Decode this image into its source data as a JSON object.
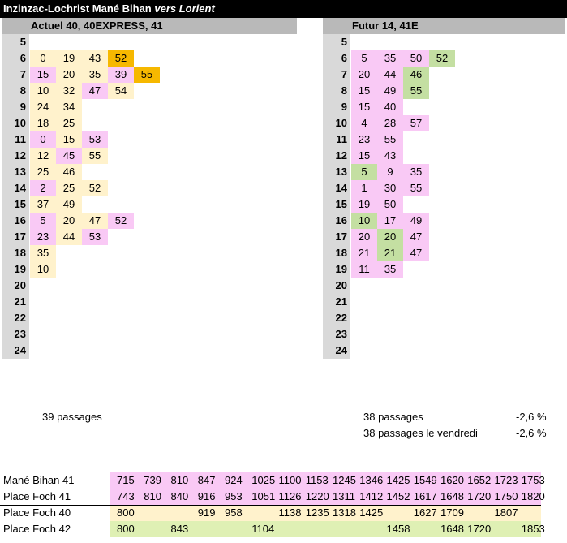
{
  "title": {
    "stop": "Inzinzac-Lochrist Mané Bihan",
    "direction": "vers Lorient"
  },
  "colors": {
    "beige": "#fff2cc",
    "pink": "#f9c9f5",
    "orange": "#f6b800",
    "green": "#c4dfa2",
    "lime": "#dff0b4",
    "header_gray": "#b9b9b9",
    "hour_gray": "#d9d9d9"
  },
  "hours": [
    "5",
    "6",
    "7",
    "8",
    "9",
    "10",
    "11",
    "12",
    "13",
    "14",
    "15",
    "16",
    "17",
    "18",
    "19",
    "20",
    "21",
    "22",
    "23",
    "24"
  ],
  "left_panel": {
    "header": "Actuel 40, 40EXPRESS, 41",
    "rows": {
      "6": [
        [
          "0",
          "beige"
        ],
        [
          "19",
          "beige"
        ],
        [
          "43",
          "beige"
        ],
        [
          "52",
          "orange"
        ]
      ],
      "7": [
        [
          "15",
          "pink"
        ],
        [
          "20",
          "beige"
        ],
        [
          "35",
          "beige"
        ],
        [
          "39",
          "pink"
        ],
        [
          "55",
          "orange"
        ]
      ],
      "8": [
        [
          "10",
          "beige"
        ],
        [
          "32",
          "beige"
        ],
        [
          "47",
          "pink"
        ],
        [
          "54",
          "beige"
        ]
      ],
      "9": [
        [
          "24",
          "beige"
        ],
        [
          "34",
          "beige"
        ]
      ],
      "10": [
        [
          "18",
          "beige"
        ],
        [
          "25",
          "beige"
        ]
      ],
      "11": [
        [
          "0",
          "pink"
        ],
        [
          "15",
          "beige"
        ],
        [
          "53",
          "pink"
        ]
      ],
      "12": [
        [
          "12",
          "beige"
        ],
        [
          "45",
          "pink"
        ],
        [
          "55",
          "beige"
        ]
      ],
      "13": [
        [
          "25",
          "beige"
        ],
        [
          "46",
          "beige"
        ]
      ],
      "14": [
        [
          "2",
          "pink"
        ],
        [
          "25",
          "beige"
        ],
        [
          "52",
          "beige"
        ]
      ],
      "15": [
        [
          "37",
          "beige"
        ],
        [
          "49",
          "beige"
        ]
      ],
      "16": [
        [
          "5",
          "pink"
        ],
        [
          "20",
          "beige"
        ],
        [
          "47",
          "beige"
        ],
        [
          "52",
          "pink"
        ]
      ],
      "17": [
        [
          "23",
          "pink"
        ],
        [
          "44",
          "beige"
        ],
        [
          "53",
          "pink"
        ]
      ],
      "18": [
        [
          "35",
          "beige"
        ]
      ],
      "19": [
        [
          "10",
          "beige"
        ]
      ]
    }
  },
  "right_panel": {
    "header": "Futur 14, 41E",
    "rows": {
      "6": [
        [
          "5",
          "pink"
        ],
        [
          "35",
          "pink"
        ],
        [
          "50",
          "pink"
        ],
        [
          "52",
          "green"
        ]
      ],
      "7": [
        [
          "20",
          "pink"
        ],
        [
          "44",
          "pink"
        ],
        [
          "46",
          "green"
        ]
      ],
      "8": [
        [
          "15",
          "pink"
        ],
        [
          "49",
          "pink"
        ],
        [
          "55",
          "green"
        ]
      ],
      "9": [
        [
          "15",
          "pink"
        ],
        [
          "40",
          "pink"
        ]
      ],
      "10": [
        [
          "4",
          "pink"
        ],
        [
          "28",
          "pink"
        ],
        [
          "57",
          "pink"
        ]
      ],
      "11": [
        [
          "23",
          "pink"
        ],
        [
          "55",
          "pink"
        ]
      ],
      "12": [
        [
          "15",
          "pink"
        ],
        [
          "43",
          "pink"
        ]
      ],
      "13": [
        [
          "5",
          "green"
        ],
        [
          "9",
          "pink"
        ],
        [
          "35",
          "pink"
        ]
      ],
      "14": [
        [
          "1",
          "pink"
        ],
        [
          "30",
          "pink"
        ],
        [
          "55",
          "pink"
        ]
      ],
      "15": [
        [
          "19",
          "pink"
        ],
        [
          "50",
          "pink"
        ]
      ],
      "16": [
        [
          "10",
          "green"
        ],
        [
          "17",
          "pink"
        ],
        [
          "49",
          "pink"
        ]
      ],
      "17": [
        [
          "20",
          "pink"
        ],
        [
          "20",
          "green"
        ],
        [
          "47",
          "pink"
        ]
      ],
      "18": [
        [
          "21",
          "pink"
        ],
        [
          "21",
          "green"
        ],
        [
          "47",
          "pink"
        ]
      ],
      "19": [
        [
          "11",
          "pink"
        ],
        [
          "35",
          "pink"
        ]
      ]
    }
  },
  "stats": {
    "current_passages": "39  passages",
    "future_passages": "38  passages",
    "future_change": "-2,6 %",
    "friday_passages": "38  passages le vendredi",
    "friday_change": "-2,6 %"
  },
  "schedule": [
    {
      "label": "Mané Bihan 41",
      "band": "pink",
      "times": [
        "715",
        "739",
        "810",
        "847",
        "924",
        "1025",
        "1100",
        "1153",
        "1245",
        "1346",
        "1425",
        "1549",
        "1620",
        "1652",
        "1723",
        "1753"
      ]
    },
    {
      "label": "Place Foch 41",
      "band": "pink",
      "times": [
        "743",
        "810",
        "840",
        "916",
        "953",
        "1051",
        "1126",
        "1220",
        "1311",
        "1412",
        "1452",
        "1617",
        "1648",
        "1720",
        "1750",
        "1820"
      ]
    },
    {
      "label": "Place Foch 40",
      "band": "beige",
      "times": [
        "800",
        "",
        "",
        "919",
        "958",
        "",
        "1138",
        "1235",
        "1318",
        "1425",
        "",
        "1627",
        "1709",
        "",
        "1807",
        ""
      ]
    },
    {
      "label": "Place Foch 42",
      "band": "lime",
      "times": [
        "800",
        "",
        "843",
        "",
        "",
        "1104",
        "",
        "",
        "",
        "",
        "1458",
        "",
        "1648",
        "1720",
        "",
        "1853"
      ]
    }
  ]
}
